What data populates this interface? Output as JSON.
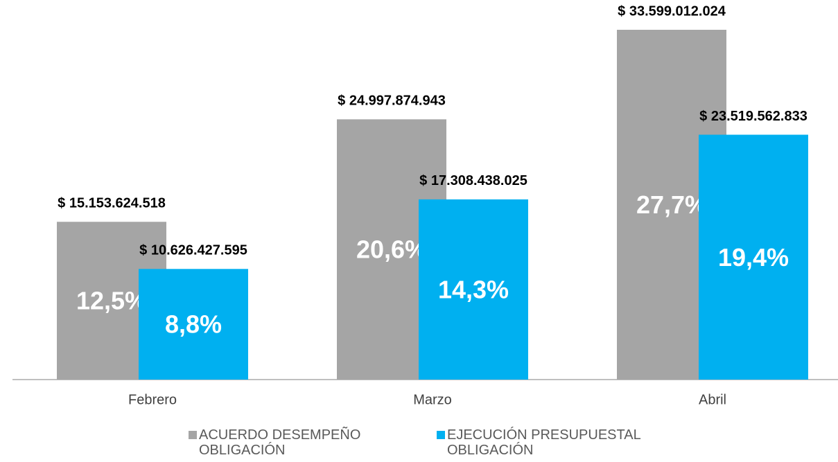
{
  "chart_data": {
    "type": "bar",
    "categories": [
      "Febrero",
      "Marzo",
      "Abril"
    ],
    "series": [
      {
        "name": "ACUERDO DESEMPEÑO OBLIGACIÓN",
        "color": "#a5a5a5",
        "values": [
          15153624518,
          24997874943,
          33599012024
        ],
        "value_labels": [
          "$ 15.153.624.518",
          "$ 24.997.874.943",
          "$ 33.599.012.024"
        ],
        "inner_labels": [
          "12,5%",
          "20,6%",
          "27,7%"
        ]
      },
      {
        "name": "EJECUCIÓN PRESUPUESTAL OBLIGACIÓN",
        "color": "#00b0f0",
        "values": [
          10626427595,
          17308438025,
          23519562833
        ],
        "value_labels": [
          "$ 10.626.427.595",
          "$ 17.308.438.025",
          "$ 23.519.562.833"
        ],
        "inner_labels": [
          "8,8%",
          "14,3%",
          "19,4%"
        ]
      }
    ],
    "legend": "bottom"
  }
}
